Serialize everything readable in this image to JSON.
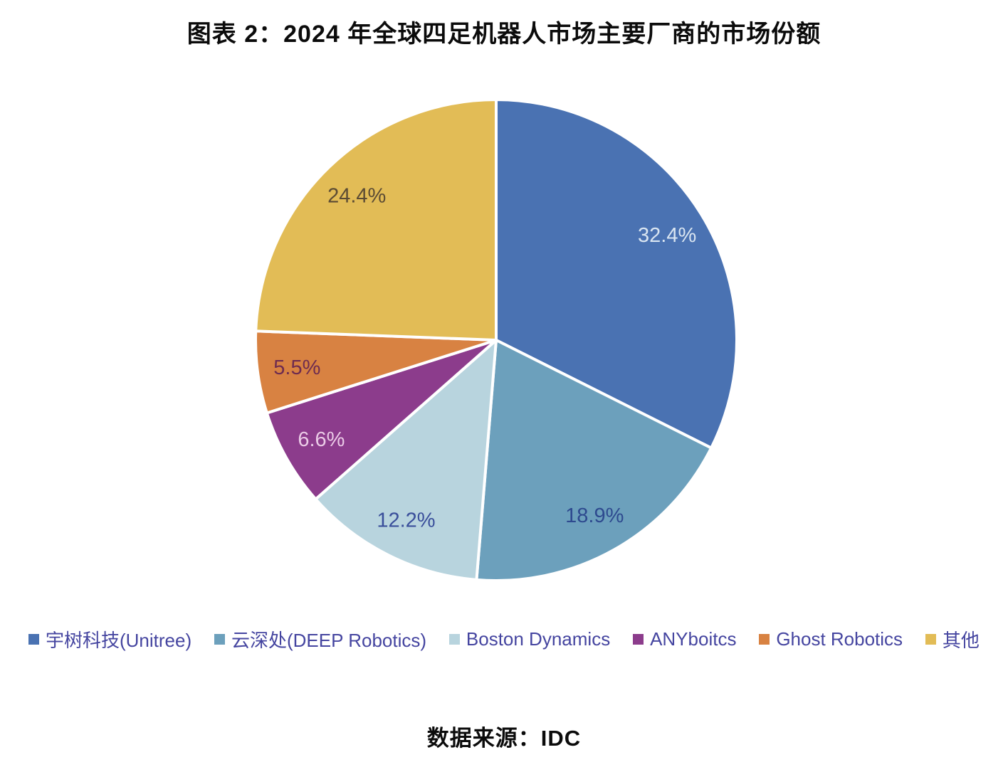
{
  "chart_data": {
    "type": "pie",
    "title": "图表 2：2024 年全球四足机器人市场主要厂商的市场份额",
    "source": "数据来源：IDC",
    "categories": [
      "宇树科技(Unitree)",
      "云深处(DEEP Robotics)",
      "Boston Dynamics",
      "ANYboitcs",
      "Ghost Robotics",
      "其他"
    ],
    "values": [
      32.4,
      18.9,
      12.2,
      6.6,
      5.5,
      24.4
    ],
    "labels": [
      "32.4%",
      "18.9%",
      "12.2%",
      "6.6%",
      "5.5%",
      "24.4%"
    ],
    "colors": [
      "#4A72B2",
      "#6CA0BC",
      "#B8D4DE",
      "#8C3C8C",
      "#D88242",
      "#E2BC56"
    ],
    "label_colors": [
      "#D9E5F1",
      "#2E4A8F",
      "#3A4F9B",
      "#EBCBE7",
      "#6E2C50",
      "#5B4B34"
    ],
    "slice_ids": [
      "unitree",
      "deep-robotics",
      "boston-dynamics",
      "anybotics",
      "ghost-robotics",
      "others"
    ],
    "start_angle_deg": 0,
    "direction": "clockwise",
    "slice_border_color": "#ffffff",
    "legend_position": "bottom"
  }
}
